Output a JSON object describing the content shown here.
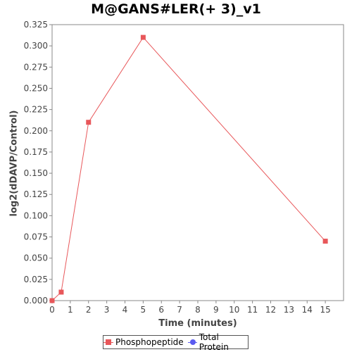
{
  "chart_data": {
    "type": "line",
    "title": "M@GANS#LER(+ 3)_v1",
    "xlabel": "Time (minutes)",
    "ylabel": "log2(dDAVP/Control)",
    "xlim": [
      0,
      16
    ],
    "ylim": [
      0,
      0.325
    ],
    "x_ticks": [
      "0",
      "1",
      "2",
      "3",
      "4",
      "5",
      "6",
      "7",
      "8",
      "9",
      "10",
      "11",
      "12",
      "13",
      "14",
      "15"
    ],
    "y_ticks": [
      "0.000",
      "0.025",
      "0.050",
      "0.075",
      "0.100",
      "0.125",
      "0.150",
      "0.175",
      "0.200",
      "0.225",
      "0.250",
      "0.275",
      "0.300",
      "0.325"
    ],
    "grid": false,
    "legend_position": "bottom",
    "series": [
      {
        "name": "Phosphopeptide",
        "color": "#e8575a",
        "marker": "square",
        "x": [
          0,
          0.5,
          2,
          5,
          15
        ],
        "y": [
          0.0,
          0.01,
          0.21,
          0.31,
          0.07
        ]
      },
      {
        "name": "Total Protein",
        "color": "#5b5bf0",
        "marker": "circle",
        "x": [],
        "y": []
      }
    ]
  }
}
